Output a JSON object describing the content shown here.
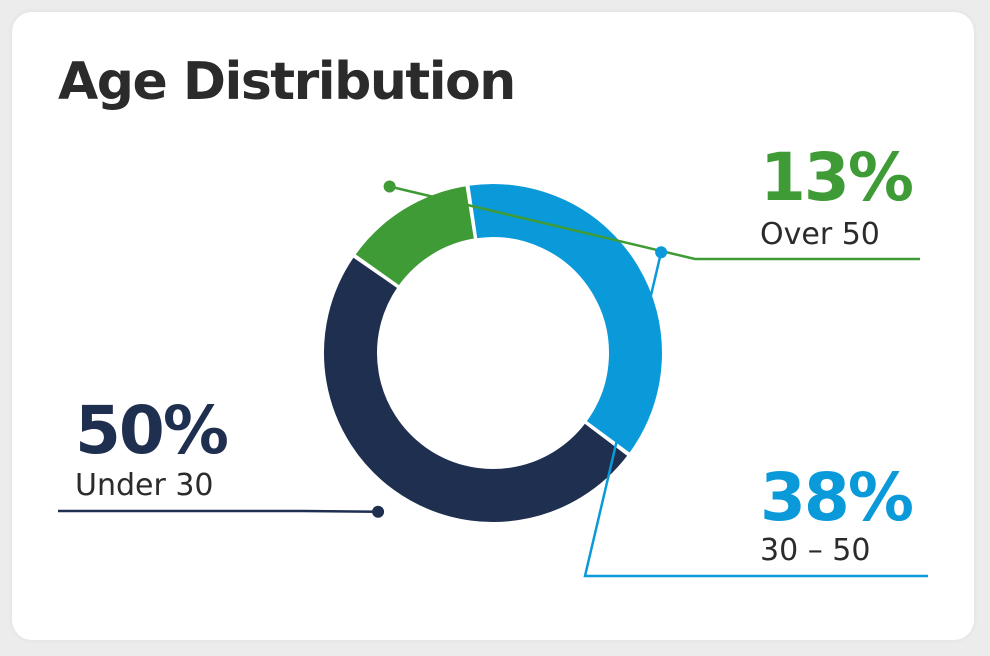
{
  "title": "Age Distribution",
  "chart_data": {
    "type": "pie",
    "variant": "donut",
    "title": "Age Distribution",
    "slices": [
      {
        "label": "Over 50",
        "value": 13,
        "value_label": "13%",
        "color": "#3e9b35"
      },
      {
        "label": "30 – 50",
        "value": 38,
        "value_label": "38%",
        "color": "#0a9ad9"
      },
      {
        "label": "Under 30",
        "value": 50,
        "value_label": "50%",
        "color": "#1f2f4f"
      }
    ]
  }
}
